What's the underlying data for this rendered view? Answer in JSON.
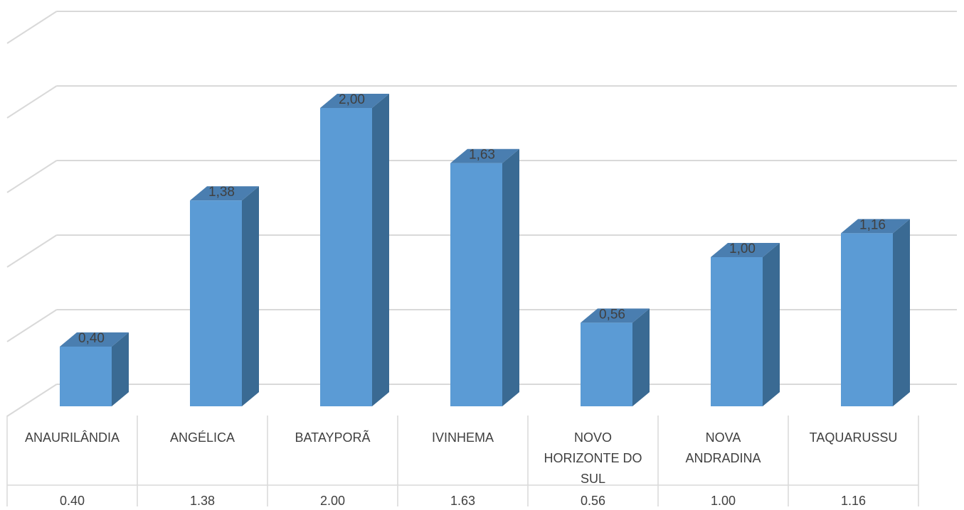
{
  "chart_data": {
    "type": "bar",
    "style": "3d-column",
    "categories": [
      "ANAURILÂNDIA",
      "ANGÉLICA",
      "BATAYPORÃ",
      "IVINHEMA",
      "NOVO HORIZONTE DO SUL",
      "NOVA ANDRADINA",
      "TAQUARUSSU"
    ],
    "category_label_lines": [
      [
        "ANAURILÂNDIA"
      ],
      [
        "ANGÉLICA"
      ],
      [
        "BATAYPORÃ"
      ],
      [
        "IVINHEMA"
      ],
      [
        "NOVO",
        "HORIZONTE DO",
        "SUL"
      ],
      [
        "NOVA",
        "ANDRADINA"
      ],
      [
        "TAQUARUSSU"
      ]
    ],
    "values": [
      0.4,
      1.38,
      2.0,
      1.63,
      0.56,
      1.0,
      1.16
    ],
    "data_labels": [
      "0,40",
      "1,38",
      "2,00",
      "1,63",
      "0,56",
      "1,00",
      "1,16"
    ],
    "table_values": [
      "0.40",
      "1.38",
      "2.00",
      "1.63",
      "0.56",
      "1.00",
      "1.16"
    ],
    "title": "",
    "xlabel": "",
    "ylabel": "",
    "ylim": [
      0,
      2.5
    ],
    "grid": true,
    "legend": "none",
    "data_table": true,
    "colors": {
      "front": "#5b9bd5",
      "side": "#3a6a93",
      "top": "#4a7eb0",
      "grid": "#d9d9d9",
      "text": "#404040",
      "table_border": "#d9d9d9"
    }
  }
}
